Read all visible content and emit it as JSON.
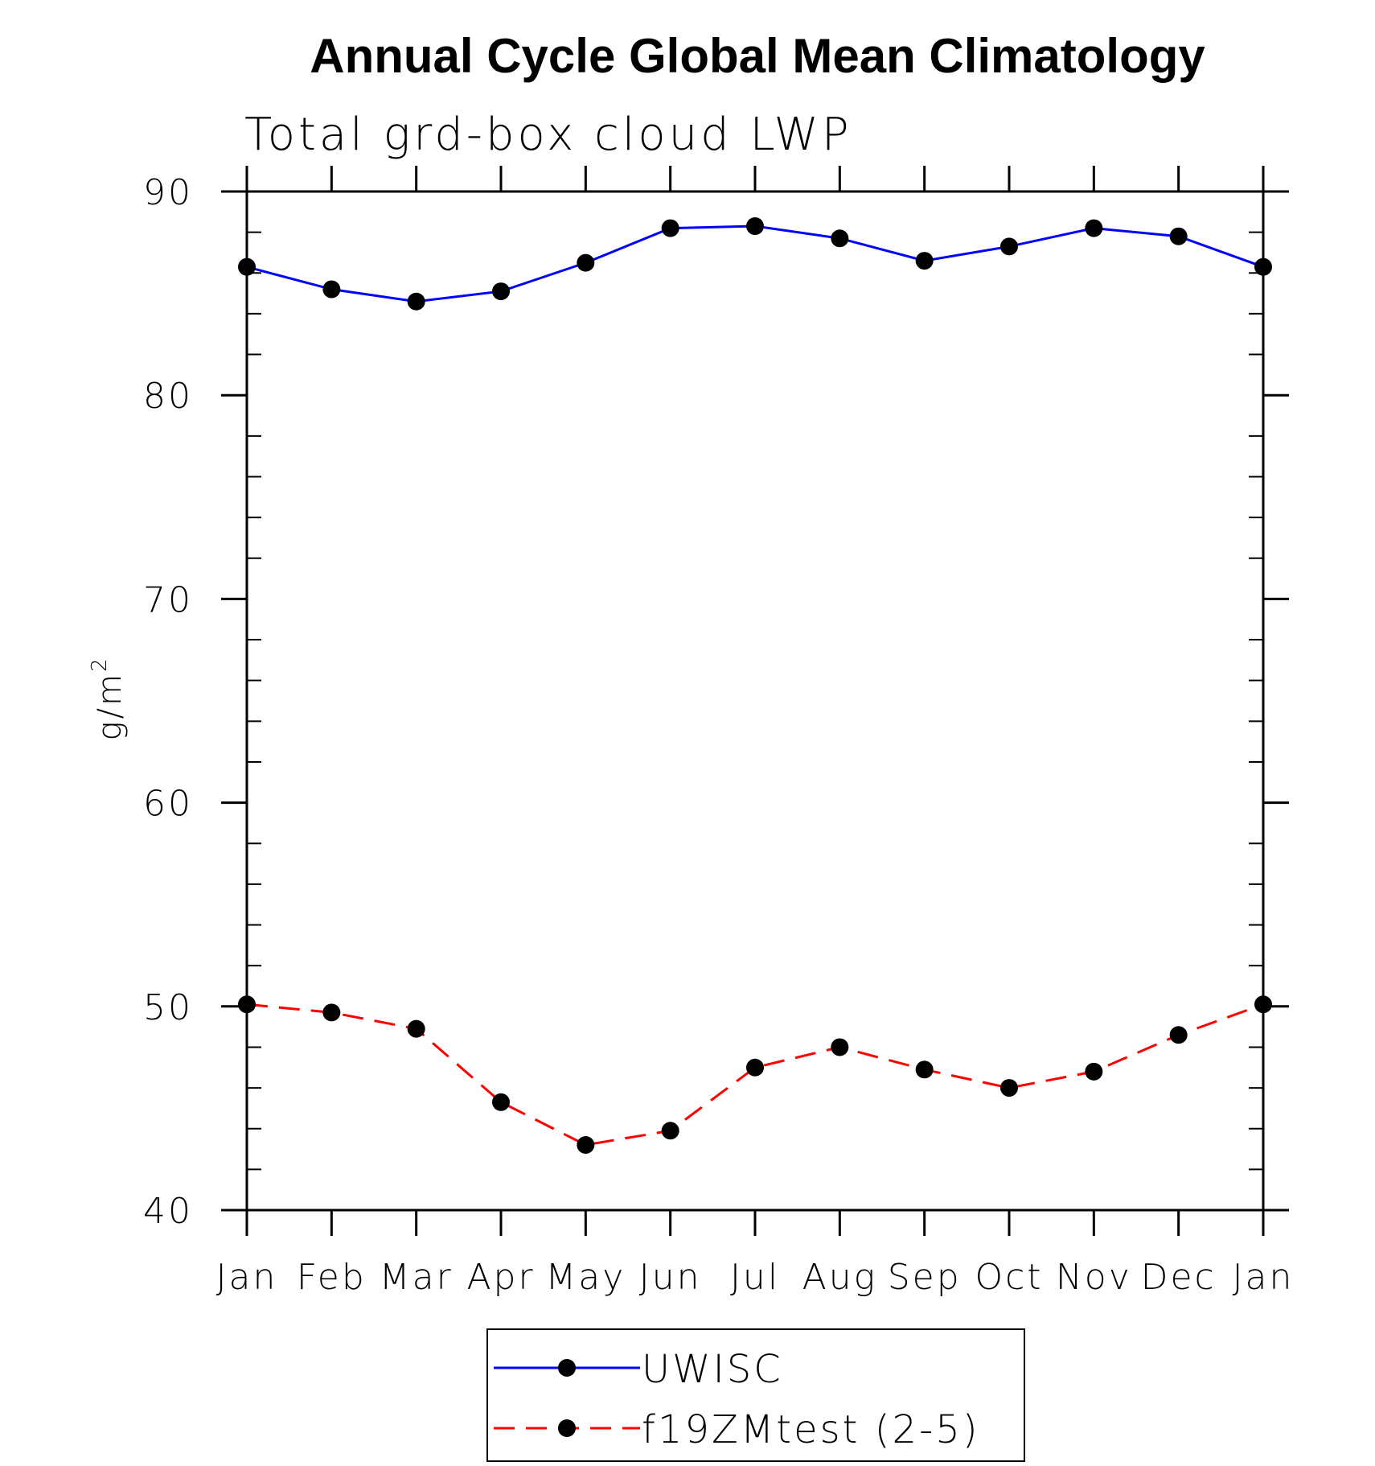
{
  "chart_data": {
    "type": "line",
    "title": "Annual Cycle Global Mean Climatology",
    "subtitle": "Total grd-box cloud LWP",
    "ylabel": "g/m",
    "ylabel_superscript": "2",
    "xlabel": "",
    "ylim": [
      40,
      90
    ],
    "yticks": [
      40,
      50,
      60,
      70,
      80,
      90
    ],
    "yticks_labels": [
      "40",
      "50",
      "60",
      "70",
      "80",
      "90"
    ],
    "y_minor_step": 2,
    "categories": [
      "Jan",
      "Feb",
      "Mar",
      "Apr",
      "May",
      "Jun",
      "Jul",
      "Aug",
      "Sep",
      "Oct",
      "Nov",
      "Dec",
      "Jan"
    ],
    "series": [
      {
        "name": "UWISC",
        "color": "#0000ff",
        "style": "solid",
        "marker": "circle",
        "values": [
          86.3,
          85.2,
          84.6,
          85.1,
          86.5,
          88.2,
          88.3,
          87.7,
          86.6,
          87.3,
          88.2,
          87.8,
          86.3
        ]
      },
      {
        "name": "f19ZMtest (2-5)",
        "color": "#ff0000",
        "style": "dashed",
        "marker": "circle",
        "values": [
          50.1,
          49.7,
          48.9,
          45.3,
          43.2,
          43.9,
          47.0,
          48.0,
          46.9,
          46.0,
          46.8,
          48.6,
          50.1
        ]
      }
    ],
    "legend_position": "bottom-center",
    "marker_color": "#000000"
  }
}
